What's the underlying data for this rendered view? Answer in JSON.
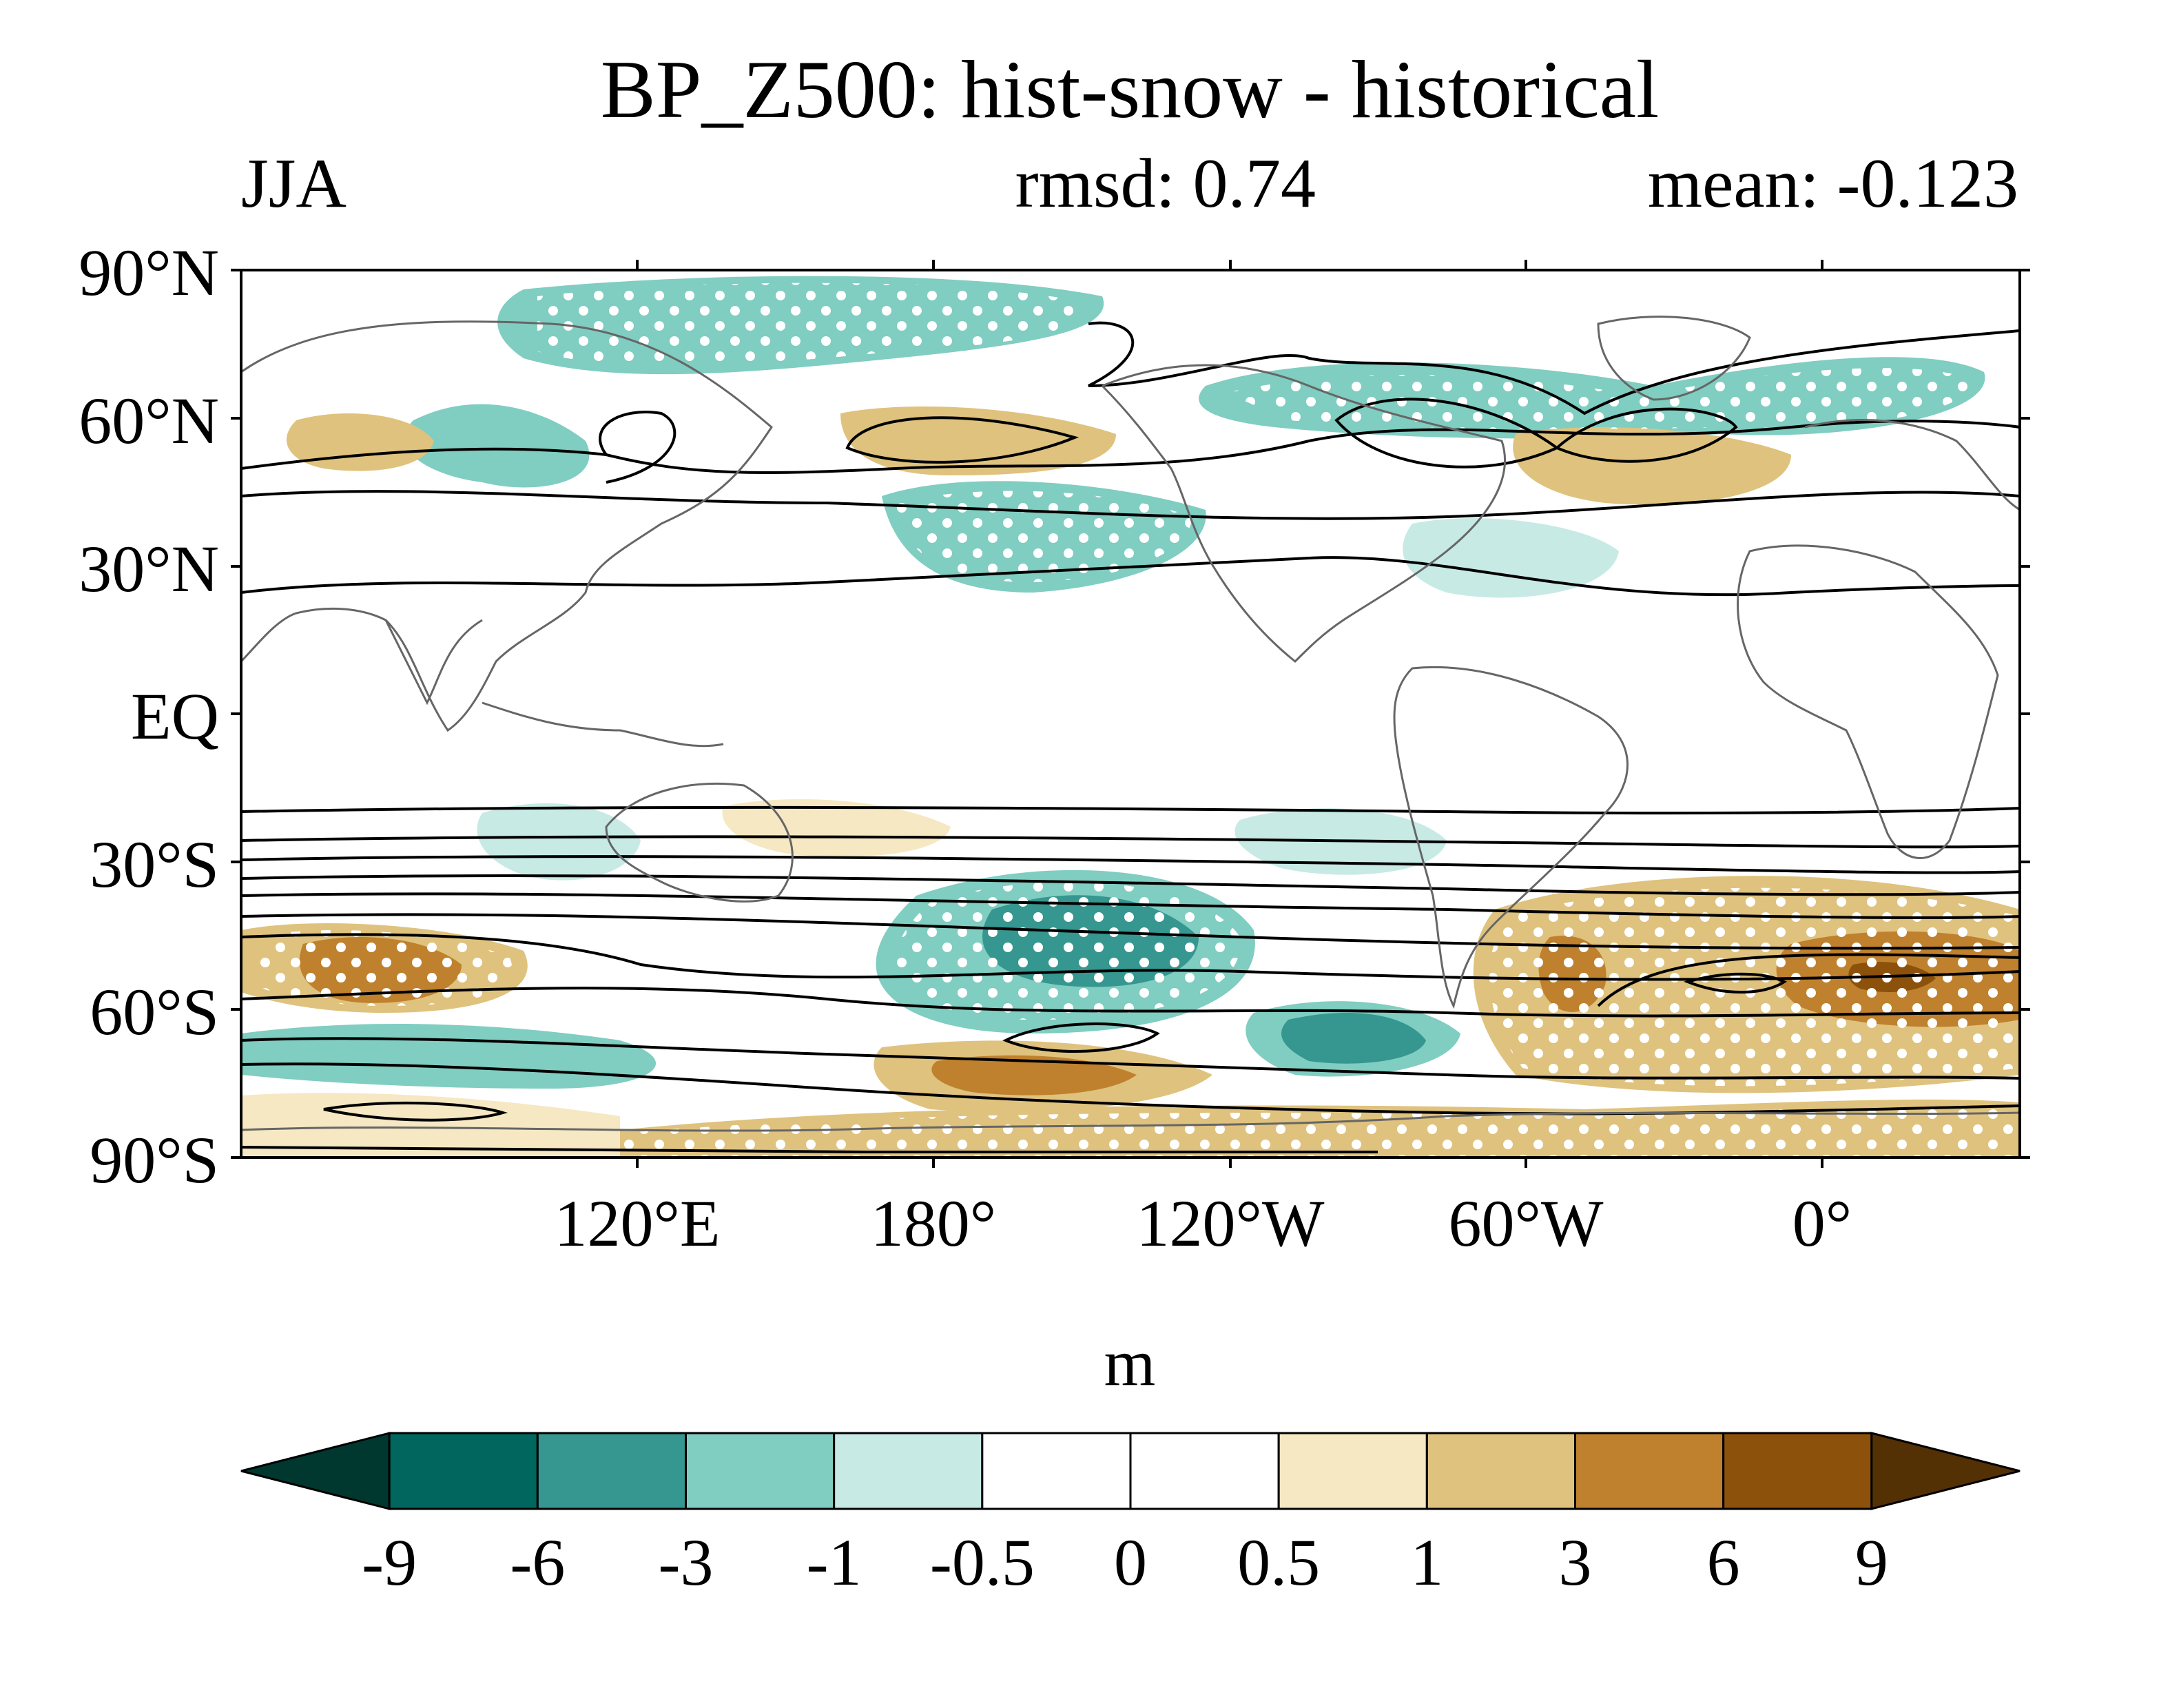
{
  "title": "BP_Z500: hist-snow - historical",
  "season": "JJA",
  "rmsd_label": "rmsd: 0.74",
  "mean_label": "mean: -0.123",
  "lat_labels": [
    "90°N",
    "60°N",
    "30°N",
    "EQ",
    "30°S",
    "60°S",
    "90°S"
  ],
  "lon_labels": [
    "120°E",
    "180°",
    "120°W",
    "60°W",
    "0°"
  ],
  "colorbar": {
    "unit": "m",
    "tick_labels": [
      "-9",
      "-6",
      "-3",
      "-1",
      "-0.5",
      "0",
      "0.5",
      "1",
      "3",
      "6",
      "9"
    ],
    "colors": [
      "#00382f",
      "#00665e",
      "#35978f",
      "#80cdc1",
      "#c7eae5",
      "#ffffff",
      "#ffffff",
      "#f6e8c3",
      "#dfc27d",
      "#bf812d",
      "#8c510a",
      "#543005"
    ]
  },
  "map_style": {
    "coast_color": "#666666",
    "contour_color": "#000000",
    "stipple_color": "#ffffff"
  }
}
